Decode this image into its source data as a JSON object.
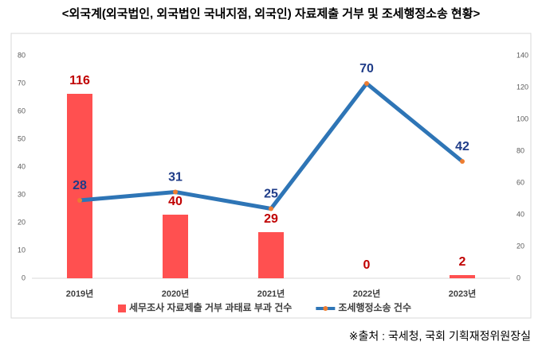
{
  "chart_data": {
    "type": "bar-line",
    "title": "<외국계(외국법인, 외국법인 국내지점, 외국인) 자료제출 거부 및 조세행정소송 현황>",
    "categories": [
      "2019년",
      "2020년",
      "2021년",
      "2022년",
      "2023년"
    ],
    "series": [
      {
        "name": "세무조사 자료제출 거부 과태료 부과 건수",
        "type": "bar",
        "axis": "y2",
        "color": "#ff5050",
        "label_color": "#c00000",
        "values": [
          116,
          40,
          29,
          0,
          2
        ]
      },
      {
        "name": "조세행정소송 건수",
        "type": "line",
        "axis": "y",
        "color": "#2e75b6",
        "marker_color": "#ed7d31",
        "label_color": "#1f3c88",
        "values": [
          28,
          31,
          25,
          70,
          42
        ]
      }
    ],
    "ylim": [
      0,
      80
    ],
    "yticks": [
      0,
      10,
      20,
      30,
      40,
      50,
      60,
      70,
      80
    ],
    "y2lim": [
      0,
      140
    ],
    "y2ticks": [
      0,
      20,
      40,
      60,
      80,
      100,
      120,
      140
    ],
    "source": "※출처 : 국세청, 국회 기획재정위원장실"
  }
}
